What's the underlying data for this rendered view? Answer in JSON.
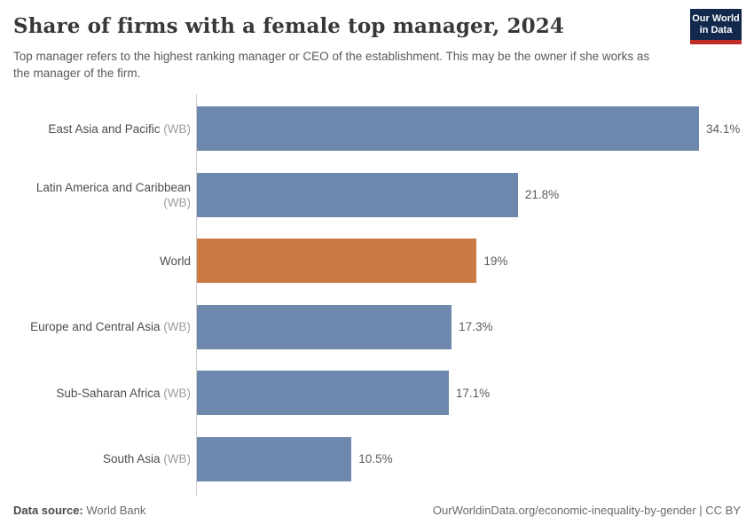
{
  "header": {
    "title": "Share of firms with a female top manager, 2024",
    "subtitle": "Top manager refers to the highest ranking manager or CEO of the establishment. This may be the owner if she works as the manager of the firm.",
    "logo": {
      "text": "Our World\nin Data",
      "bg_color": "#12294d",
      "accent_color": "#bf2e26"
    }
  },
  "chart_data": {
    "type": "bar",
    "orientation": "horizontal",
    "title": "Share of firms with a female top manager, 2024",
    "categories": [
      "East Asia and Pacific",
      "Latin America and Caribbean",
      "World",
      "Europe and Central Asia",
      "Sub-Saharan Africa",
      "South Asia"
    ],
    "category_suffixes": [
      "(WB)",
      "(WB)",
      "",
      "(WB)",
      "(WB)",
      "(WB)"
    ],
    "values": [
      34.1,
      21.8,
      19,
      17.3,
      17.1,
      10.5
    ],
    "value_labels": [
      "34.1%",
      "21.8%",
      "19%",
      "17.3%",
      "17.1%",
      "10.5%"
    ],
    "bar_colors": [
      "#6e88ad",
      "#6e88ad",
      "#cc7a44",
      "#6e88ad",
      "#6e88ad",
      "#6e88ad"
    ],
    "highlight_category": "World",
    "xlim": [
      0,
      35
    ],
    "xlabel": "",
    "ylabel": "",
    "grid": false,
    "legend": false,
    "axis_color": "#cdcdcd"
  },
  "footer": {
    "datasource_label": "Data source:",
    "datasource_value": "World Bank",
    "link": "OurWorldinData.org/economic-inequality-by-gender | CC BY"
  }
}
